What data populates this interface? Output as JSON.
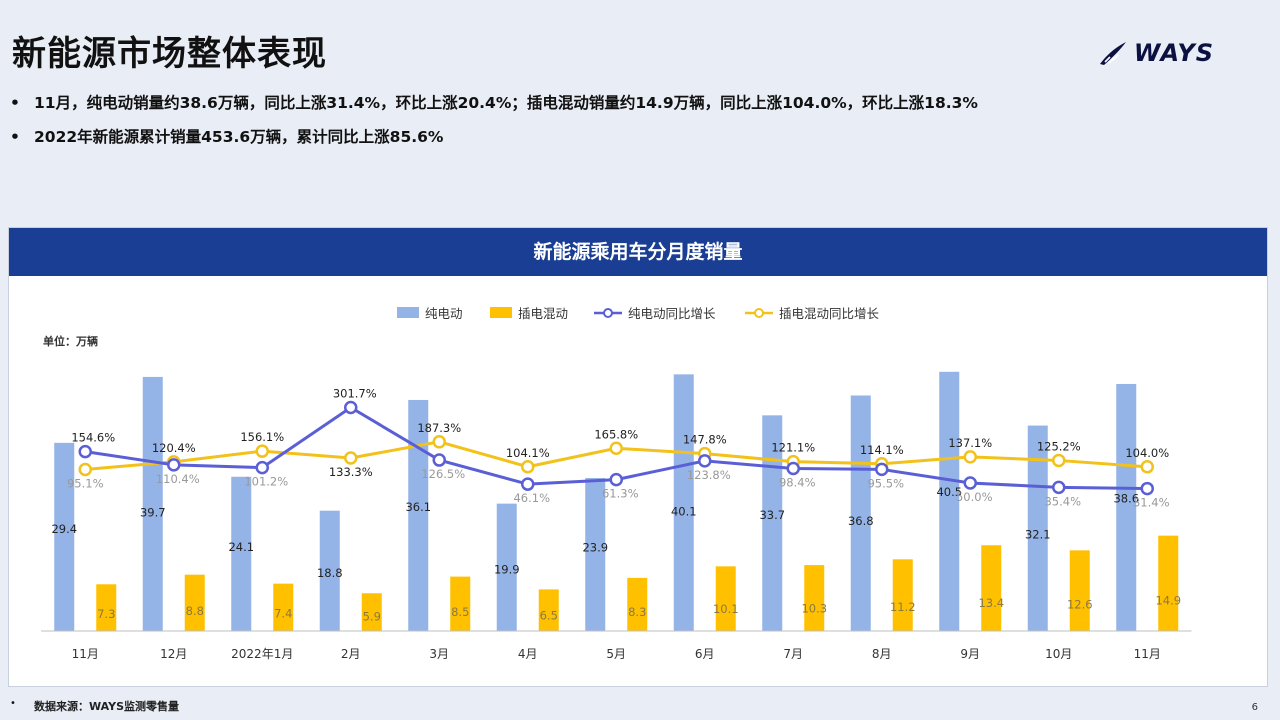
{
  "page": {
    "title": "新能源市场整体表现",
    "logo_text": "WAYS",
    "bullets": [
      "11月，纯电动销量约38.6万辆，同比上涨31.4%，环比上涨20.4%；插电混动销量约14.9万辆，同比上涨104.0%，环比上涨18.3%",
      "2022年新能源累计销量453.6万辆，累计同比上涨85.6%"
    ],
    "footer_source": "数据来源：WAYS监测零售量",
    "page_number": "6"
  },
  "colors": {
    "header_bg": "#1a3e94",
    "bev_bar": "#94b4e8",
    "phev_bar": "#ffc000",
    "bev_line": "#5a5fd6",
    "phev_line": "#f2c21a"
  },
  "chart_data": {
    "type": "bar",
    "title": "新能源乘用车分月度销量",
    "unit_label": "单位：万辆",
    "categories": [
      "11月",
      "12月",
      "2022年1月",
      "2月",
      "3月",
      "4月",
      "5月",
      "6月",
      "7月",
      "8月",
      "9月",
      "10月",
      "11月"
    ],
    "series": [
      {
        "name": "纯电动",
        "type": "bar",
        "values": [
          29.4,
          39.7,
          24.1,
          18.8,
          36.1,
          19.9,
          23.9,
          40.1,
          33.7,
          36.8,
          40.5,
          32.1,
          38.6
        ]
      },
      {
        "name": "插电混动",
        "type": "bar",
        "values": [
          7.3,
          8.8,
          7.4,
          5.9,
          8.5,
          6.5,
          8.3,
          10.1,
          10.3,
          11.2,
          13.4,
          12.6,
          14.9
        ]
      },
      {
        "name": "纯电动同比增长",
        "type": "line",
        "values": [
          154.6,
          110.4,
          101.2,
          301.7,
          126.5,
          46.1,
          61.3,
          123.8,
          98.4,
          95.5,
          50.0,
          35.4,
          31.4
        ],
        "labels": [
          "154.6%",
          "110.4%",
          "101.2%",
          "301.7%",
          "126.5%",
          "46.1%",
          "61.3%",
          "123.8%",
          "98.4%",
          "95.5%",
          "50.0%",
          "35.4%",
          "31.4%"
        ]
      },
      {
        "name": "插电混动同比增长",
        "type": "line",
        "values": [
          95.1,
          120.4,
          156.1,
          133.3,
          187.3,
          104.1,
          165.8,
          147.8,
          121.1,
          114.1,
          137.1,
          125.2,
          104.0
        ],
        "labels": [
          "95.1%",
          "120.4%",
          "156.1%",
          "133.3%",
          "187.3%",
          "104.1%",
          "165.8%",
          "147.8%",
          "121.1%",
          "114.1%",
          "137.1%",
          "125.2%",
          "104.0%"
        ]
      }
    ],
    "legend_position": "top",
    "grid": false
  }
}
